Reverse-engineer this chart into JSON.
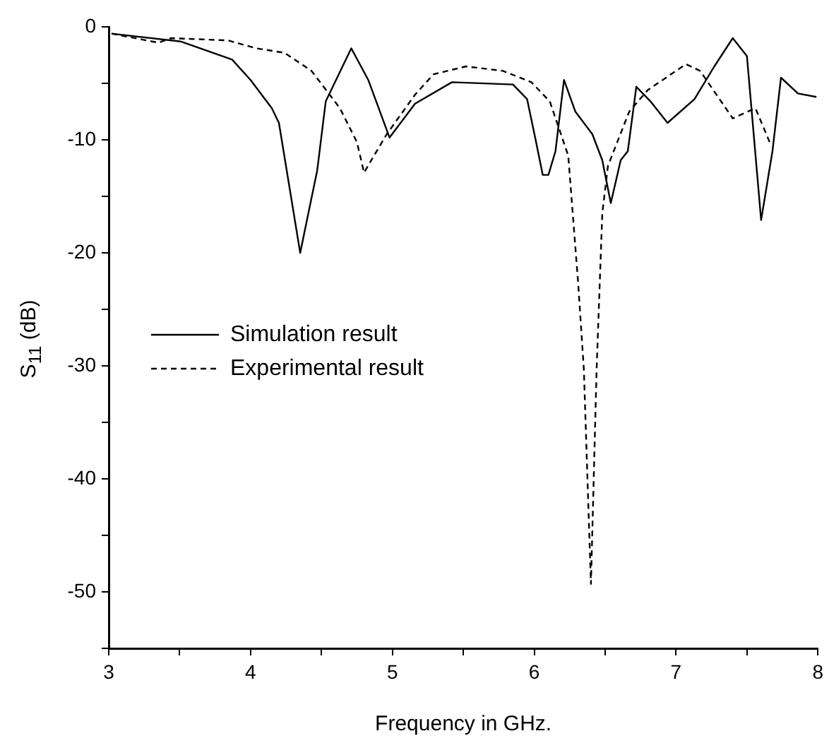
{
  "chart_data": {
    "type": "line",
    "xlabel": "Frequency in GHz.",
    "ylabel": "S$_{11}$ (dB)",
    "xlim": [
      3,
      8
    ],
    "xticks": [
      3,
      {
        "value": 3.5,
        "label": null
      },
      4,
      {
        "value": 4.5,
        "label": null
      },
      5,
      {
        "value": 5.5,
        "label": null
      },
      6,
      {
        "value": 6.5,
        "label": null
      },
      7,
      {
        "value": 7.5,
        "label": null
      },
      8
    ],
    "ylim": [
      -55,
      0
    ],
    "yticks": [
      0,
      {
        "value": -5,
        "label": null
      },
      -10,
      {
        "value": -15,
        "label": null
      },
      -20,
      {
        "value": -25,
        "label": null
      },
      -30,
      {
        "value": -35,
        "label": null
      },
      -40,
      {
        "value": -45,
        "label": null
      },
      -50,
      {
        "value": -55,
        "label": null
      }
    ],
    "grid": false,
    "legend": "left",
    "marker": "none",
    "series": [
      {
        "name": "Simulation result",
        "color": "#000000",
        "line_style": "solid",
        "x": [
          3.02,
          3.51,
          3.87,
          4.0,
          4.15,
          4.2,
          4.35,
          4.47,
          4.53,
          4.71,
          4.83,
          4.98,
          5.16,
          5.42,
          5.85,
          5.95,
          6.01,
          6.06,
          6.1,
          6.15,
          6.21,
          6.29,
          6.41,
          6.48,
          6.54,
          6.61,
          6.66,
          6.72,
          6.82,
          6.94,
          7.13,
          7.27,
          7.4,
          7.5,
          7.6,
          7.68,
          7.74,
          7.86,
          7.99
        ],
        "values": [
          -0.6,
          -1.3,
          -2.9,
          -4.7,
          -7.2,
          -8.5,
          -20,
          -12.7,
          -6.6,
          -1.9,
          -4.7,
          -9.8,
          -6.8,
          -4.9,
          -5.1,
          -6.4,
          -10,
          -13.1,
          -13.1,
          -11,
          -4.7,
          -7.5,
          -9.5,
          -11.8,
          -15.6,
          -11.8,
          -11,
          -5.3,
          -6.6,
          -8.5,
          -6.4,
          -3.5,
          -1,
          -2.6,
          -17.1,
          -11,
          -4.5,
          -5.9,
          -6.2
        ]
      },
      {
        "name": "Experimental result",
        "color": "#000000",
        "line_style": "dashed",
        "x": [
          3.02,
          3.35,
          3.44,
          3.84,
          4.04,
          4.24,
          4.43,
          4.63,
          4.75,
          4.8,
          4.96,
          5.16,
          5.29,
          5.52,
          5.78,
          5.98,
          6.11,
          6.24,
          6.31,
          6.35,
          6.4,
          6.44,
          6.48,
          6.52,
          6.67,
          6.8,
          7.07,
          7.17,
          7.4,
          7.56,
          7.66
        ],
        "values": [
          -0.6,
          -1.4,
          -1,
          -1.2,
          -1.9,
          -2.3,
          -3.9,
          -7.2,
          -10.2,
          -12.9,
          -9.5,
          -6,
          -4.2,
          -3.5,
          -3.9,
          -4.9,
          -6.6,
          -11.4,
          -22.7,
          -30.3,
          -49.3,
          -30.3,
          -16.5,
          -12.3,
          -7.5,
          -5.6,
          -3.3,
          -3.9,
          -8.1,
          -7.2,
          -10.2
        ]
      }
    ]
  }
}
